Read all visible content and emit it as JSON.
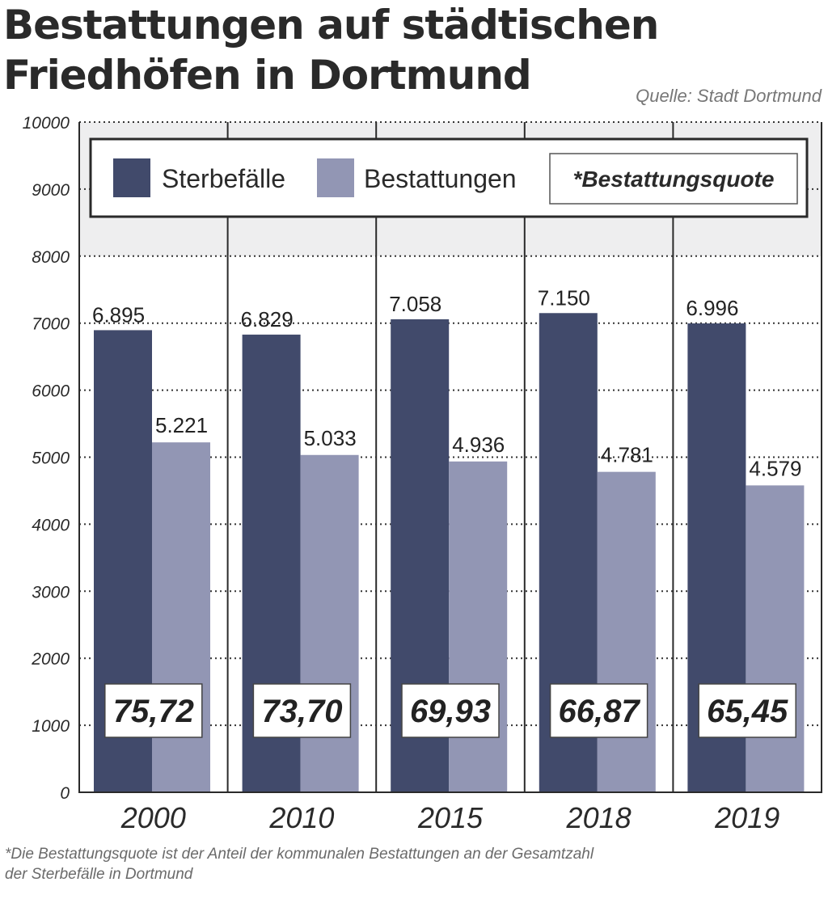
{
  "title_line1": "Bestattungen auf städtischen",
  "title_line2": "Friedhöfen in Dortmund",
  "source": "Quelle: Stadt Dortmund",
  "footnote_line1": "*Die Bestattungsquote ist der Anteil der kommunalen Bestattungen an der Gesamtzahl",
  "footnote_line2": "der Sterbefälle in Dortmund",
  "colors": {
    "sterbefaelle": "#414a6b",
    "bestattungen": "#9296b4",
    "band": "#eeeeef",
    "grid": "#333333",
    "frame": "#2a2a2a"
  },
  "chart_data": {
    "type": "bar",
    "categories": [
      "2000",
      "2010",
      "2015",
      "2018",
      "2019"
    ],
    "series": [
      {
        "name": "Sterbefälle",
        "values": [
          6895,
          6829,
          7058,
          7150,
          6996
        ],
        "labels": [
          "6.895",
          "6.829",
          "7.058",
          "7.150",
          "6.996"
        ]
      },
      {
        "name": "Bestattungen",
        "values": [
          5221,
          5033,
          4936,
          4781,
          4579
        ],
        "labels": [
          "5.221",
          "5.033",
          "4.936",
          "4.781",
          "4.579"
        ]
      }
    ],
    "quote_legend": "*Bestattungsquote",
    "quote_values": [
      "75,72",
      "73,70",
      "69,93",
      "66,87",
      "65,45"
    ],
    "ylim": [
      0,
      10000
    ],
    "yticks": [
      0,
      1000,
      2000,
      3000,
      4000,
      5000,
      6000,
      7000,
      8000,
      9000,
      10000
    ],
    "legend_position": "top",
    "grid": true
  }
}
